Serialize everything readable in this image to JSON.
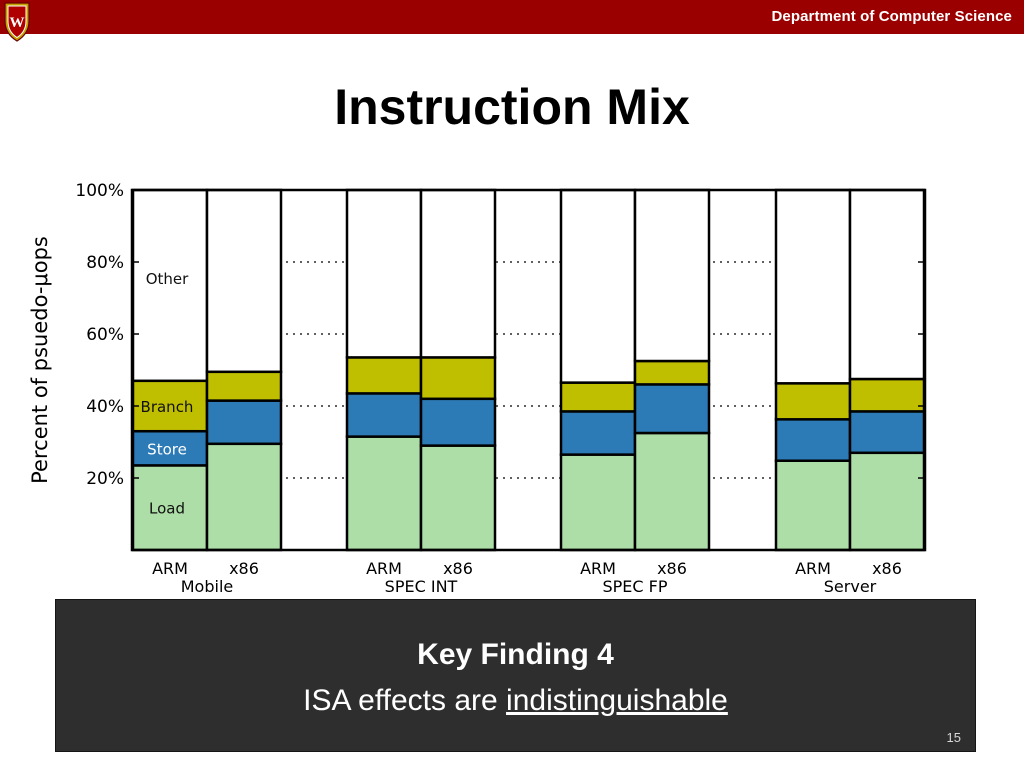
{
  "header": {
    "department": "Department of Computer Science",
    "crest_letter": "W",
    "bar_color": "#9b0000"
  },
  "slide": {
    "title": "Instruction Mix",
    "page_number": "15"
  },
  "callout": {
    "heading": "Key Finding 4",
    "text_prefix": "ISA effects are ",
    "text_emphasis": "indistinguishable"
  },
  "chart_data": {
    "type": "bar",
    "stacked": true,
    "ylabel": "Percent of psuedo-μops",
    "ylim": [
      0,
      100
    ],
    "yticks": [
      20,
      40,
      60,
      80,
      100
    ],
    "ytick_labels": [
      "20%",
      "40%",
      "60%",
      "80%",
      "100%"
    ],
    "grid": "horizontal-dotted",
    "groups": [
      {
        "name": "Mobile",
        "bars": [
          "ARM",
          "x86"
        ]
      },
      {
        "name": "SPEC INT",
        "bars": [
          "ARM",
          "x86"
        ]
      },
      {
        "name": "SPEC FP",
        "bars": [
          "ARM",
          "x86"
        ]
      },
      {
        "name": "Server",
        "bars": [
          "ARM",
          "x86"
        ]
      }
    ],
    "categories": [
      "Mobile ARM",
      "Mobile x86",
      "SPEC INT ARM",
      "SPEC INT x86",
      "SPEC FP ARM",
      "SPEC FP x86",
      "Server ARM",
      "Server x86"
    ],
    "series": [
      {
        "name": "Load",
        "color": "#addea7",
        "values": [
          23.5,
          29.5,
          31.5,
          29,
          26.5,
          32.5,
          24.8,
          27
        ]
      },
      {
        "name": "Store",
        "color": "#2c7bb6",
        "values": [
          9.5,
          12,
          12,
          13,
          12,
          13.5,
          11.5,
          11.5
        ]
      },
      {
        "name": "Branch",
        "color": "#bfbf00",
        "values": [
          14,
          8,
          10,
          11.5,
          8,
          6.5,
          10,
          9
        ]
      },
      {
        "name": "Other",
        "color": "#ffffff",
        "values": [
          53,
          50.5,
          46.5,
          46.5,
          53.5,
          47.5,
          53.7,
          52.5
        ]
      }
    ]
  }
}
